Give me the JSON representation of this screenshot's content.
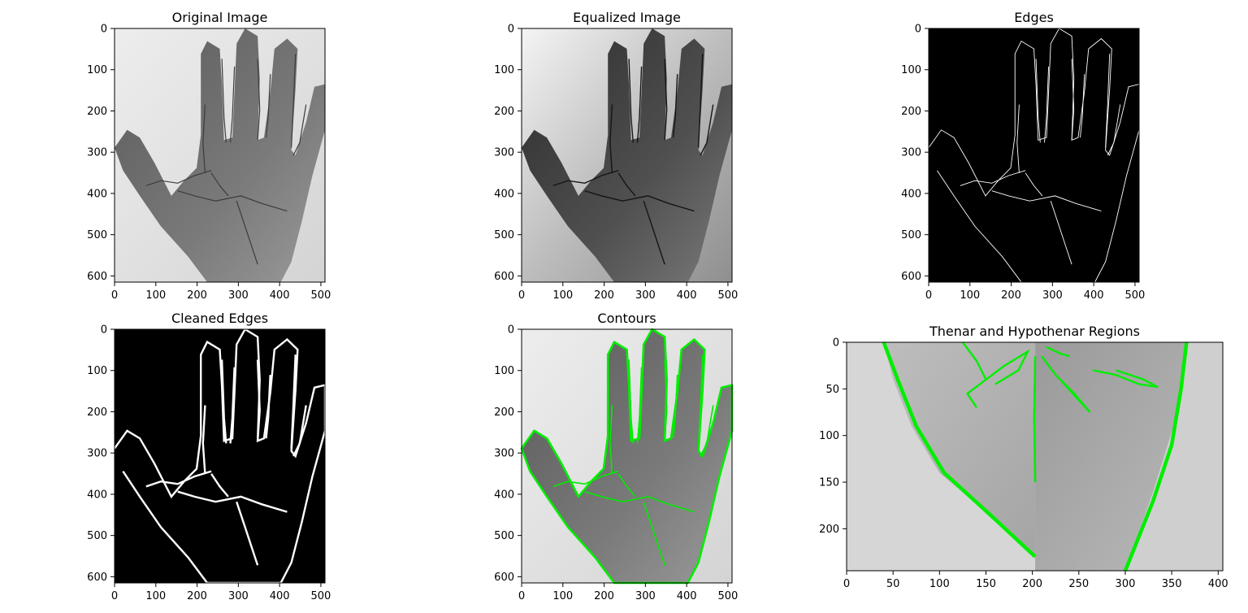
{
  "figure": {
    "panels": [
      {
        "id": "original",
        "title": "Original Image",
        "image_kind": "grayscale-photo",
        "xlim": [
          0,
          510
        ],
        "ylim": [
          615,
          0
        ],
        "xticks": [
          0,
          100,
          200,
          300,
          400,
          500
        ],
        "yticks": [
          0,
          100,
          200,
          300,
          400,
          500,
          600
        ],
        "xtick_labels": [
          "0",
          "100",
          "200",
          "300",
          "400",
          "500"
        ],
        "ytick_labels": [
          "0",
          "100",
          "200",
          "300",
          "400",
          "500",
          "600"
        ]
      },
      {
        "id": "equalized",
        "title": "Equalized Image",
        "image_kind": "equalized-photo",
        "xlim": [
          0,
          510
        ],
        "ylim": [
          615,
          0
        ],
        "xticks": [
          0,
          100,
          200,
          300,
          400,
          500
        ],
        "yticks": [
          0,
          100,
          200,
          300,
          400,
          500,
          600
        ],
        "xtick_labels": [
          "0",
          "100",
          "200",
          "300",
          "400",
          "500"
        ],
        "ytick_labels": [
          "0",
          "100",
          "200",
          "300",
          "400",
          "500",
          "600"
        ]
      },
      {
        "id": "edges",
        "title": "Edges",
        "image_kind": "edge-map-thin",
        "xlim": [
          0,
          510
        ],
        "ylim": [
          615,
          0
        ],
        "xticks": [
          0,
          100,
          200,
          300,
          400,
          500
        ],
        "yticks": [
          0,
          100,
          200,
          300,
          400,
          500,
          600
        ],
        "xtick_labels": [
          "0",
          "100",
          "200",
          "300",
          "400",
          "500"
        ],
        "ytick_labels": [
          "0",
          "100",
          "200",
          "300",
          "400",
          "500",
          "600"
        ]
      },
      {
        "id": "cleaned",
        "title": "Cleaned Edges",
        "image_kind": "edge-map-thick",
        "xlim": [
          0,
          510
        ],
        "ylim": [
          615,
          0
        ],
        "xticks": [
          0,
          100,
          200,
          300,
          400,
          500
        ],
        "yticks": [
          0,
          100,
          200,
          300,
          400,
          500,
          600
        ],
        "xtick_labels": [
          "0",
          "100",
          "200",
          "300",
          "400",
          "500"
        ],
        "ytick_labels": [
          "0",
          "100",
          "200",
          "300",
          "400",
          "500",
          "600"
        ]
      },
      {
        "id": "contours",
        "title": "Contours",
        "image_kind": "photo-with-green-contours",
        "xlim": [
          0,
          510
        ],
        "ylim": [
          615,
          0
        ],
        "xticks": [
          0,
          100,
          200,
          300,
          400,
          500
        ],
        "yticks": [
          0,
          100,
          200,
          300,
          400,
          500,
          600
        ],
        "xtick_labels": [
          "0",
          "100",
          "200",
          "300",
          "400",
          "500"
        ],
        "ytick_labels": [
          "0",
          "100",
          "200",
          "300",
          "400",
          "500",
          "600"
        ]
      },
      {
        "id": "regions",
        "title": "Thenar and Hypothenar Regions",
        "image_kind": "cropped-regions-with-green-contours",
        "xlim": [
          0,
          405
        ],
        "ylim": [
          245,
          0
        ],
        "xticks": [
          0,
          50,
          100,
          150,
          200,
          250,
          300,
          350,
          400
        ],
        "yticks": [
          0,
          50,
          100,
          150,
          200
        ],
        "xtick_labels": [
          "0",
          "50",
          "100",
          "150",
          "200",
          "250",
          "300",
          "350",
          "400"
        ],
        "ytick_labels": [
          "0",
          "50",
          "100",
          "150",
          "200"
        ]
      }
    ],
    "colors": {
      "contour": "#00ee00",
      "edge": "#ffffff",
      "background_dark": "#000000",
      "skin_dark": "#4a4a4a",
      "skin_light": "#8a8a8a",
      "paper": "#e6e6e6"
    }
  },
  "chart_data": {
    "type": "image-grid",
    "rows": 2,
    "cols": 3,
    "panels": [
      "Original Image",
      "Equalized Image",
      "Edges",
      "Cleaned Edges",
      "Contours",
      "Thenar and Hypothenar Regions"
    ]
  }
}
